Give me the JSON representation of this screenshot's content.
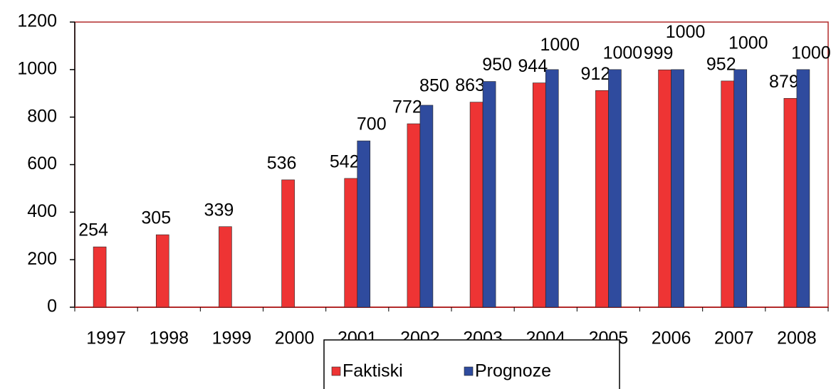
{
  "chart_data": {
    "type": "bar",
    "categories": [
      "1997",
      "1998",
      "1999",
      "2000",
      "2001",
      "2002",
      "2003",
      "2004",
      "2005",
      "2006",
      "2007",
      "2008"
    ],
    "series": [
      {
        "name": "Faktiski",
        "color": "#ee3434",
        "values": [
          254,
          305,
          339,
          536,
          542,
          772,
          863,
          944,
          912,
          999,
          952,
          879
        ]
      },
      {
        "name": "Prognoze",
        "color": "#2f4b9e",
        "values": [
          null,
          null,
          null,
          null,
          700,
          850,
          950,
          1000,
          1000,
          1000,
          1000,
          1000
        ]
      }
    ],
    "ylim": [
      0,
      1200
    ],
    "yticks": [
      0,
      200,
      400,
      600,
      800,
      1000,
      1200
    ],
    "grid": false,
    "legend": "bottom"
  }
}
